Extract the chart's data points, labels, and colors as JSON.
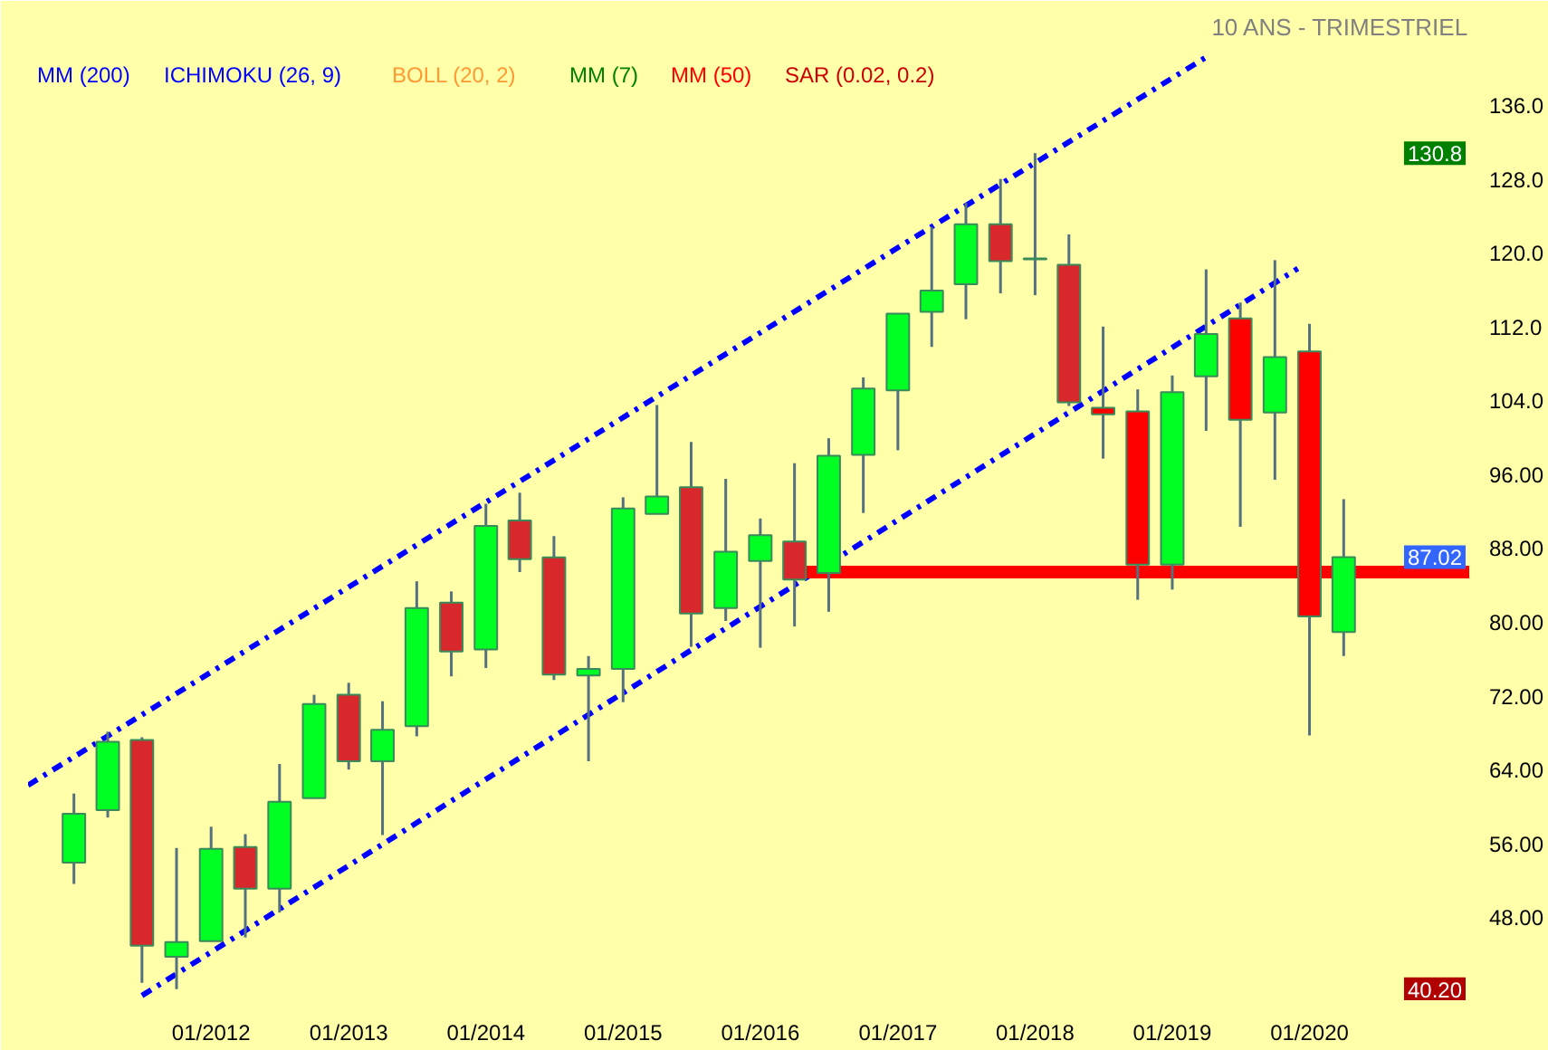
{
  "chart_data": {
    "type": "candlestick",
    "subtitle": "10 ANS - TRIMESTRIEL",
    "x": [
      "2011-01",
      "2011-04",
      "2011-07",
      "2011-10",
      "2012-01",
      "2012-04",
      "2012-07",
      "2012-10",
      "2013-01",
      "2013-04",
      "2013-07",
      "2013-10",
      "2014-01",
      "2014-04",
      "2014-07",
      "2014-10",
      "2015-01",
      "2015-04",
      "2015-07",
      "2015-10",
      "2016-01",
      "2016-04",
      "2016-07",
      "2016-10",
      "2017-01",
      "2017-04",
      "2017-07",
      "2017-10",
      "2018-01",
      "2018-04",
      "2018-07",
      "2018-10",
      "2019-01",
      "2019-04",
      "2019-07",
      "2019-10",
      "2020-01",
      "2020-04"
    ],
    "ohlc": [
      [
        53.9,
        61.4,
        51.6,
        59.2
      ],
      [
        59.6,
        68.1,
        58.8,
        67.0
      ],
      [
        67.2,
        67.5,
        40.9,
        44.9
      ],
      [
        43.7,
        55.5,
        40.2,
        45.3
      ],
      [
        45.4,
        57.8,
        45.4,
        55.4
      ],
      [
        55.6,
        57.0,
        45.8,
        51.1
      ],
      [
        51.1,
        64.6,
        48.5,
        60.5
      ],
      [
        60.9,
        72.1,
        60.9,
        71.1
      ],
      [
        72.1,
        73.4,
        64.0,
        64.9
      ],
      [
        64.9,
        71.4,
        56.9,
        68.3
      ],
      [
        68.7,
        84.4,
        67.6,
        81.5
      ],
      [
        82.1,
        83.3,
        74.1,
        76.8
      ],
      [
        77.0,
        92.8,
        75.0,
        90.4
      ],
      [
        91.0,
        94.0,
        85.4,
        86.8
      ],
      [
        87.0,
        89.3,
        73.7,
        74.3
      ],
      [
        74.2,
        76.3,
        64.9,
        74.9
      ],
      [
        74.9,
        93.5,
        71.3,
        92.3
      ],
      [
        91.7,
        103.5,
        91.7,
        93.6
      ],
      [
        94.6,
        99.5,
        77.3,
        80.9
      ],
      [
        81.5,
        95.5,
        80.1,
        87.6
      ],
      [
        86.6,
        91.2,
        77.2,
        89.4
      ],
      [
        88.7,
        97.2,
        79.5,
        84.6
      ],
      [
        85.3,
        99.9,
        81.1,
        98.0
      ],
      [
        98.1,
        106.5,
        91.8,
        105.3
      ],
      [
        105.1,
        113.4,
        98.6,
        113.4
      ],
      [
        113.6,
        122.8,
        109.8,
        115.9
      ],
      [
        116.6,
        125.4,
        112.8,
        123.1
      ],
      [
        123.1,
        128.0,
        115.6,
        119.1
      ],
      [
        119.3,
        130.8,
        115.4,
        119.4
      ],
      [
        118.7,
        122.0,
        103.4,
        103.8
      ],
      [
        103.2,
        112.0,
        97.7,
        102.5
      ],
      [
        102.8,
        105.2,
        82.4,
        86.2
      ],
      [
        86.2,
        106.7,
        83.5,
        104.9
      ],
      [
        106.6,
        118.2,
        100.7,
        111.2
      ],
      [
        112.9,
        114.6,
        90.3,
        101.9
      ],
      [
        102.7,
        119.2,
        95.4,
        108.7
      ],
      [
        109.3,
        112.3,
        67.7,
        80.6
      ],
      [
        78.9,
        93.3,
        76.3,
        87.02
      ]
    ],
    "colors": [
      "#00ff22",
      "#00ff22",
      "#d9282b",
      "#00ff22",
      "#00ff22",
      "#d9282b",
      "#00ff22",
      "#00ff22",
      "#d9282b",
      "#00ff22",
      "#00ff22",
      "#d9282b",
      "#00ff22",
      "#d9282b",
      "#d9282b",
      "#00ff22",
      "#00ff22",
      "#00ff22",
      "#d9282b",
      "#00ff22",
      "#00ff22",
      "#d9282b",
      "#00ff22",
      "#00ff22",
      "#00ff22",
      "#00ff22",
      "#00ff22",
      "#d9282b",
      "#22b14c",
      "#d9282b",
      "#ff0000",
      "#ff0000",
      "#00ff22",
      "#00ff22",
      "#ff0000",
      "#00ff22",
      "#ff0000",
      "#00ff22"
    ],
    "series": [
      {
        "type": "line",
        "color": "#0000ff",
        "line_style": "dashed",
        "x": [
          "2010-09",
          "2019-04"
        ],
        "values": [
          62.3,
          141.2
        ]
      },
      {
        "type": "line",
        "color": "#0000ff",
        "line_style": "dashed",
        "x": [
          "2011-07",
          "2019-12"
        ],
        "values": [
          39.5,
          118.3
        ]
      },
      {
        "type": "line",
        "color": "#ff0000",
        "line_style": "solid",
        "x": [
          "2016-05",
          "2021-03"
        ],
        "values": [
          85.4,
          85.4
        ]
      }
    ],
    "annotations": [
      "MM (200)",
      "ICHIMOKU (26, 9)",
      "BOLL (20, 2)",
      "MM (7)",
      "MM (50)",
      "SAR (0.02, 0.2)",
      {
        "text": "130.8",
        "y": 130.8
      },
      {
        "text": "87.02",
        "y": 87.02
      },
      {
        "text": "40.20",
        "y": 40.2
      }
    ],
    "xlim": [
      "2010-09",
      "2021-03"
    ],
    "xticks": [
      {
        "value": "2012-01",
        "label": "01/2012"
      },
      {
        "value": "2013-01",
        "label": "01/2013"
      },
      {
        "value": "2014-01",
        "label": "01/2014"
      },
      {
        "value": "2015-01",
        "label": "01/2015"
      },
      {
        "value": "2016-01",
        "label": "01/2016"
      },
      {
        "value": "2017-01",
        "label": "01/2017"
      },
      {
        "value": "2018-01",
        "label": "01/2018"
      },
      {
        "value": "2019-01",
        "label": "01/2019"
      },
      {
        "value": "2020-01",
        "label": "01/2020"
      }
    ],
    "ylim": [
      39,
      142
    ],
    "yticks": [
      {
        "value": 48,
        "label": "48.00"
      },
      {
        "value": 56,
        "label": "56.00"
      },
      {
        "value": 64,
        "label": "64.00"
      },
      {
        "value": 72,
        "label": "72.00"
      },
      {
        "value": 80,
        "label": "80.00"
      },
      {
        "value": 88,
        "label": "88.00"
      },
      {
        "value": 96,
        "label": "96.00"
      },
      {
        "value": 104,
        "label": "104.0"
      },
      {
        "value": 112,
        "label": "112.0"
      },
      {
        "value": 120,
        "label": "120.0"
      },
      {
        "value": 128,
        "label": "128.0"
      },
      {
        "value": 136,
        "label": "136.0"
      }
    ]
  }
}
